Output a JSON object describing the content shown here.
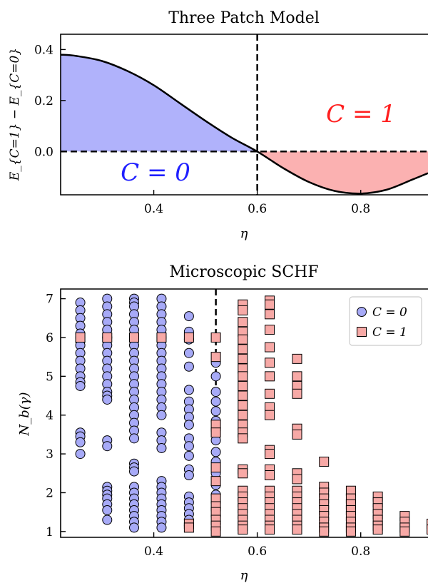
{
  "colors": {
    "blue_fill": "#b0b2fb",
    "red_fill": "#fbb1b1",
    "blue_marker": "#a7aaf7",
    "red_marker": "#f7a9a6",
    "blue_text": "#1f1fff",
    "red_text": "#ff1f1f"
  },
  "chart_data": [
    {
      "type": "line",
      "title": "Three Patch Model",
      "xlabel": "η",
      "ylabel": "E_{C=1} − E_{C=0}",
      "xlim": [
        0.22,
        0.93
      ],
      "ylim": [
        -0.17,
        0.46
      ],
      "xticks": [
        0.4,
        0.6,
        0.8
      ],
      "xtick_labels": [
        "0.4",
        "0.6",
        "0.8"
      ],
      "yticks": [
        0.0,
        0.2,
        0.4
      ],
      "ytick_labels": [
        "0.0",
        "0.2",
        "0.4"
      ],
      "vline_x": 0.6,
      "hline_y": 0.0,
      "annotations": [
        {
          "text": "C = 0",
          "color": "blue"
        },
        {
          "text": "C = 1",
          "color": "red"
        }
      ],
      "series": [
        {
          "x": [
            0.22,
            0.25,
            0.3,
            0.35,
            0.4,
            0.45,
            0.5,
            0.55,
            0.6,
            0.65,
            0.7,
            0.75,
            0.8,
            0.85,
            0.9,
            0.93
          ],
          "y": [
            0.38,
            0.375,
            0.355,
            0.315,
            0.26,
            0.19,
            0.12,
            0.055,
            0.0,
            -0.065,
            -0.12,
            -0.155,
            -0.165,
            -0.15,
            -0.11,
            -0.085
          ]
        }
      ]
    },
    {
      "type": "scatter",
      "title": "Microscopic SCHF",
      "xlabel": "η",
      "ylabel": "N_b(γ)",
      "xlim": [
        0.22,
        0.93
      ],
      "ylim": [
        0.85,
        7.25
      ],
      "xticks": [
        0.4,
        0.6,
        0.8
      ],
      "xtick_labels": [
        "0.4",
        "0.6",
        "0.8"
      ],
      "yticks": [
        1,
        2,
        3,
        4,
        5,
        6,
        7
      ],
      "ytick_labels": [
        "1",
        "2",
        "3",
        "4",
        "5",
        "6",
        "7"
      ],
      "vline_x": 0.52,
      "legend": {
        "position": "upper right",
        "entries": [
          "C = 0",
          "C = 1"
        ]
      },
      "series": [
        {
          "name": "C = 0",
          "points": [
            [
              0.258,
              6.9
            ],
            [
              0.258,
              6.7
            ],
            [
              0.258,
              6.5
            ],
            [
              0.258,
              6.3
            ],
            [
              0.258,
              6.1
            ],
            [
              0.258,
              6.0
            ],
            [
              0.258,
              5.9
            ],
            [
              0.258,
              5.8
            ],
            [
              0.258,
              5.6
            ],
            [
              0.258,
              5.4
            ],
            [
              0.258,
              5.2
            ],
            [
              0.258,
              5.0
            ],
            [
              0.258,
              4.85
            ],
            [
              0.258,
              4.75
            ],
            [
              0.258,
              3.55
            ],
            [
              0.258,
              3.45
            ],
            [
              0.258,
              3.3
            ],
            [
              0.258,
              3.0
            ],
            [
              0.31,
              7.0
            ],
            [
              0.31,
              6.8
            ],
            [
              0.31,
              6.6
            ],
            [
              0.31,
              6.4
            ],
            [
              0.31,
              6.2
            ],
            [
              0.31,
              6.0
            ],
            [
              0.31,
              5.8
            ],
            [
              0.31,
              5.6
            ],
            [
              0.31,
              5.4
            ],
            [
              0.31,
              5.2
            ],
            [
              0.31,
              5.0
            ],
            [
              0.31,
              4.8
            ],
            [
              0.31,
              4.6
            ],
            [
              0.31,
              4.5
            ],
            [
              0.31,
              4.4
            ],
            [
              0.31,
              3.35
            ],
            [
              0.31,
              3.2
            ],
            [
              0.31,
              2.15
            ],
            [
              0.31,
              2.05
            ],
            [
              0.31,
              1.95
            ],
            [
              0.31,
              1.85
            ],
            [
              0.31,
              1.7
            ],
            [
              0.31,
              1.55
            ],
            [
              0.31,
              1.3
            ],
            [
              0.362,
              7.0
            ],
            [
              0.362,
              6.9
            ],
            [
              0.362,
              6.8
            ],
            [
              0.362,
              6.6
            ],
            [
              0.362,
              6.4
            ],
            [
              0.362,
              6.2
            ],
            [
              0.362,
              6.0
            ],
            [
              0.362,
              5.8
            ],
            [
              0.362,
              5.6
            ],
            [
              0.362,
              5.4
            ],
            [
              0.362,
              5.2
            ],
            [
              0.362,
              5.0
            ],
            [
              0.362,
              4.8
            ],
            [
              0.362,
              4.6
            ],
            [
              0.362,
              4.4
            ],
            [
              0.362,
              4.2
            ],
            [
              0.362,
              4.0
            ],
            [
              0.362,
              3.8
            ],
            [
              0.362,
              3.6
            ],
            [
              0.362,
              3.4
            ],
            [
              0.362,
              2.75
            ],
            [
              0.362,
              2.65
            ],
            [
              0.362,
              2.55
            ],
            [
              0.362,
              2.15
            ],
            [
              0.362,
              2.0
            ],
            [
              0.362,
              1.85
            ],
            [
              0.362,
              1.7
            ],
            [
              0.362,
              1.55
            ],
            [
              0.362,
              1.4
            ],
            [
              0.362,
              1.25
            ],
            [
              0.362,
              1.1
            ],
            [
              0.415,
              7.0
            ],
            [
              0.415,
              6.8
            ],
            [
              0.415,
              6.6
            ],
            [
              0.415,
              6.4
            ],
            [
              0.415,
              6.2
            ],
            [
              0.415,
              6.0
            ],
            [
              0.415,
              5.8
            ],
            [
              0.415,
              5.6
            ],
            [
              0.415,
              5.4
            ],
            [
              0.415,
              5.2
            ],
            [
              0.415,
              5.0
            ],
            [
              0.415,
              4.8
            ],
            [
              0.415,
              4.6
            ],
            [
              0.415,
              4.4
            ],
            [
              0.415,
              4.2
            ],
            [
              0.415,
              4.0
            ],
            [
              0.415,
              3.55
            ],
            [
              0.415,
              3.35
            ],
            [
              0.415,
              3.15
            ],
            [
              0.415,
              2.3
            ],
            [
              0.415,
              2.15
            ],
            [
              0.415,
              2.0
            ],
            [
              0.415,
              1.85
            ],
            [
              0.415,
              1.7
            ],
            [
              0.415,
              1.55
            ],
            [
              0.415,
              1.4
            ],
            [
              0.415,
              1.25
            ],
            [
              0.415,
              1.1
            ],
            [
              0.468,
              6.55
            ],
            [
              0.468,
              6.15
            ],
            [
              0.468,
              5.95
            ],
            [
              0.468,
              5.6
            ],
            [
              0.468,
              5.25
            ],
            [
              0.468,
              4.65
            ],
            [
              0.468,
              4.35
            ],
            [
              0.468,
              4.15
            ],
            [
              0.468,
              3.95
            ],
            [
              0.468,
              3.75
            ],
            [
              0.468,
              3.4
            ],
            [
              0.468,
              3.2
            ],
            [
              0.468,
              2.95
            ],
            [
              0.468,
              2.6
            ],
            [
              0.468,
              2.45
            ],
            [
              0.468,
              1.9
            ],
            [
              0.468,
              1.75
            ],
            [
              0.468,
              1.6
            ],
            [
              0.468,
              1.45
            ],
            [
              0.468,
              1.3
            ],
            [
              0.468,
              1.15
            ],
            [
              0.52,
              5.35
            ],
            [
              0.52,
              5.0
            ],
            [
              0.52,
              4.6
            ],
            [
              0.52,
              4.35
            ],
            [
              0.52,
              4.1
            ],
            [
              0.52,
              3.85
            ],
            [
              0.52,
              3.6
            ],
            [
              0.52,
              3.35
            ],
            [
              0.52,
              3.05
            ],
            [
              0.52,
              2.8
            ],
            [
              0.52,
              2.5
            ],
            [
              0.52,
              2.2
            ],
            [
              0.52,
              1.95
            ],
            [
              0.52,
              1.6
            ],
            [
              0.52,
              1.4
            ],
            [
              0.52,
              1.2
            ]
          ]
        },
        {
          "name": "C = 1",
          "points": [
            [
              0.258,
              6.0
            ],
            [
              0.31,
              6.0
            ],
            [
              0.362,
              6.0
            ],
            [
              0.415,
              6.0
            ],
            [
              0.468,
              6.0
            ],
            [
              0.468,
              1.2
            ],
            [
              0.468,
              1.1
            ],
            [
              0.52,
              6.0
            ],
            [
              0.52,
              5.5
            ],
            [
              0.52,
              3.75
            ],
            [
              0.52,
              3.55
            ],
            [
              0.52,
              2.65
            ],
            [
              0.52,
              2.3
            ],
            [
              0.52,
              1.85
            ],
            [
              0.52,
              1.65
            ],
            [
              0.52,
              1.5
            ],
            [
              0.52,
              1.3
            ],
            [
              0.52,
              1.15
            ],
            [
              0.52,
              1.0
            ],
            [
              0.572,
              6.85
            ],
            [
              0.572,
              6.7
            ],
            [
              0.572,
              6.4
            ],
            [
              0.572,
              6.15
            ],
            [
              0.572,
              5.95
            ],
            [
              0.572,
              5.7
            ],
            [
              0.572,
              5.45
            ],
            [
              0.572,
              5.2
            ],
            [
              0.572,
              5.0
            ],
            [
              0.572,
              4.75
            ],
            [
              0.572,
              4.5
            ],
            [
              0.572,
              4.25
            ],
            [
              0.572,
              4.0
            ],
            [
              0.572,
              3.75
            ],
            [
              0.572,
              3.55
            ],
            [
              0.572,
              3.4
            ],
            [
              0.572,
              2.6
            ],
            [
              0.572,
              2.5
            ],
            [
              0.572,
              2.05
            ],
            [
              0.572,
              1.9
            ],
            [
              0.572,
              1.75
            ],
            [
              0.572,
              1.6
            ],
            [
              0.572,
              1.45
            ],
            [
              0.572,
              1.3
            ],
            [
              0.572,
              1.15
            ],
            [
              0.572,
              1.05
            ],
            [
              0.624,
              6.95
            ],
            [
              0.624,
              6.85
            ],
            [
              0.624,
              6.6
            ],
            [
              0.624,
              6.2
            ],
            [
              0.624,
              5.75
            ],
            [
              0.624,
              5.35
            ],
            [
              0.624,
              5.0
            ],
            [
              0.624,
              4.55
            ],
            [
              0.624,
              4.2
            ],
            [
              0.624,
              4.0
            ],
            [
              0.624,
              3.1
            ],
            [
              0.624,
              3.0
            ],
            [
              0.624,
              2.6
            ],
            [
              0.624,
              2.45
            ],
            [
              0.624,
              2.05
            ],
            [
              0.624,
              1.9
            ],
            [
              0.624,
              1.75
            ],
            [
              0.624,
              1.6
            ],
            [
              0.624,
              1.45
            ],
            [
              0.624,
              1.3
            ],
            [
              0.624,
              1.15
            ],
            [
              0.624,
              1.05
            ],
            [
              0.677,
              5.45
            ],
            [
              0.677,
              5.0
            ],
            [
              0.677,
              4.75
            ],
            [
              0.677,
              4.55
            ],
            [
              0.677,
              3.65
            ],
            [
              0.677,
              3.5
            ],
            [
              0.677,
              2.5
            ],
            [
              0.677,
              2.35
            ],
            [
              0.677,
              2.05
            ],
            [
              0.677,
              1.9
            ],
            [
              0.677,
              1.75
            ],
            [
              0.677,
              1.6
            ],
            [
              0.677,
              1.45
            ],
            [
              0.677,
              1.3
            ],
            [
              0.677,
              1.15
            ],
            [
              0.677,
              1.05
            ],
            [
              0.729,
              2.8
            ],
            [
              0.729,
              2.15
            ],
            [
              0.729,
              2.0
            ],
            [
              0.729,
              1.85
            ],
            [
              0.729,
              1.7
            ],
            [
              0.729,
              1.55
            ],
            [
              0.729,
              1.4
            ],
            [
              0.729,
              1.25
            ],
            [
              0.729,
              1.1
            ],
            [
              0.729,
              1.0
            ],
            [
              0.781,
              2.05
            ],
            [
              0.781,
              1.85
            ],
            [
              0.781,
              1.7
            ],
            [
              0.781,
              1.55
            ],
            [
              0.781,
              1.4
            ],
            [
              0.781,
              1.25
            ],
            [
              0.781,
              1.1
            ],
            [
              0.781,
              1.0
            ],
            [
              0.833,
              1.9
            ],
            [
              0.833,
              1.75
            ],
            [
              0.833,
              1.6
            ],
            [
              0.833,
              1.45
            ],
            [
              0.833,
              1.3
            ],
            [
              0.833,
              1.15
            ],
            [
              0.833,
              1.05
            ],
            [
              0.885,
              1.4
            ],
            [
              0.885,
              1.25
            ],
            [
              0.885,
              1.1
            ],
            [
              0.885,
              1.0
            ],
            [
              0.937,
              1.2
            ],
            [
              0.937,
              1.05
            ]
          ]
        }
      ]
    }
  ]
}
